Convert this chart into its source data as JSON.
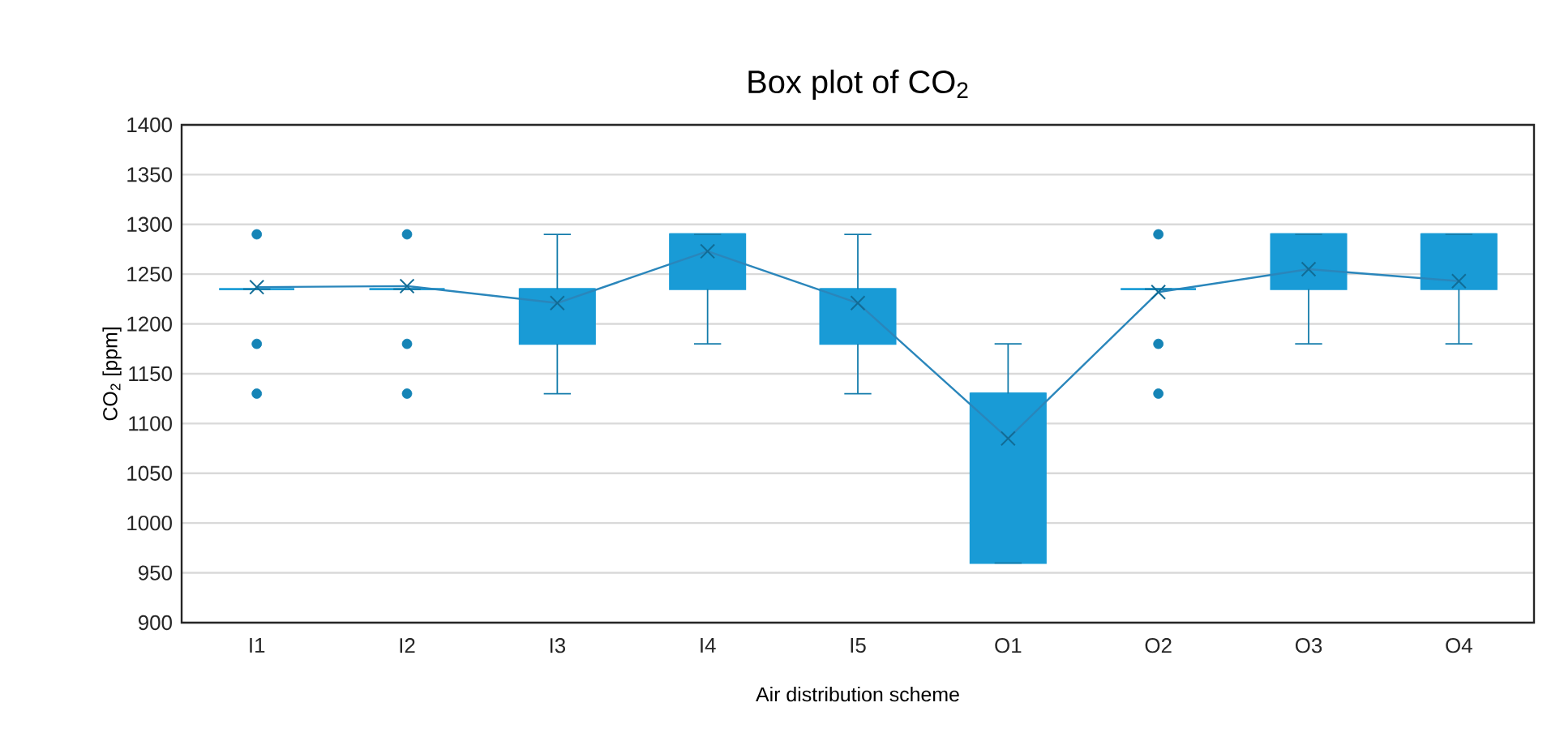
{
  "chart_data": {
    "type": "box",
    "title": "Box plot of CO$_{2}$",
    "xlabel": "Air distribution scheme",
    "ylabel": "CO$_{2}$ [ppm]",
    "categories": [
      "I1",
      "I2",
      "I3",
      "I4",
      "I5",
      "O1",
      "O2",
      "O3",
      "O4"
    ],
    "ylim": [
      900,
      1400
    ],
    "yticks": [
      900,
      950,
      1000,
      1050,
      1100,
      1150,
      1200,
      1250,
      1300,
      1350,
      1400
    ],
    "grid": "y",
    "series": [
      {
        "color": "#199bd6",
        "marker": "circle",
        "boxes": [
          {
            "low": 1235,
            "q1": 1235,
            "median": 1235,
            "q3": 1235,
            "high": 1235,
            "mean": 1237,
            "outliers": [
              1290,
              1180,
              1130
            ]
          },
          {
            "low": 1235,
            "q1": 1235,
            "median": 1235,
            "q3": 1235,
            "high": 1235,
            "mean": 1238,
            "outliers": [
              1290,
              1180,
              1130
            ]
          },
          {
            "low": 1130,
            "q1": 1180,
            "median": 1235,
            "q3": 1235,
            "high": 1290,
            "mean": 1221
          },
          {
            "low": 1180,
            "q1": 1235,
            "median": 1290,
            "q3": 1290,
            "high": 1290,
            "mean": 1273
          },
          {
            "low": 1130,
            "q1": 1180,
            "median": 1235,
            "q3": 1235,
            "high": 1290,
            "mean": 1221
          },
          {
            "low": 960,
            "q1": 960,
            "median": 1130,
            "q3": 1130,
            "high": 1180,
            "mean": 1085
          },
          {
            "low": 1235,
            "q1": 1235,
            "median": 1235,
            "q3": 1235,
            "high": 1235,
            "mean": 1232,
            "outliers": [
              1290,
              1180,
              1130
            ]
          },
          {
            "low": 1180,
            "q1": 1235,
            "median": 1290,
            "q3": 1290,
            "high": 1290,
            "mean": 1255
          },
          {
            "low": 1180,
            "q1": 1235,
            "median": 1290,
            "q3": 1290,
            "high": 1290,
            "mean": 1243
          }
        ]
      },
      {
        "type": "line",
        "color": "#2a86bb",
        "marker": "none",
        "line_style": "solid",
        "values": [
          1237,
          1238,
          1221,
          1273,
          1221,
          1085,
          1232,
          1255,
          1243
        ]
      }
    ]
  }
}
